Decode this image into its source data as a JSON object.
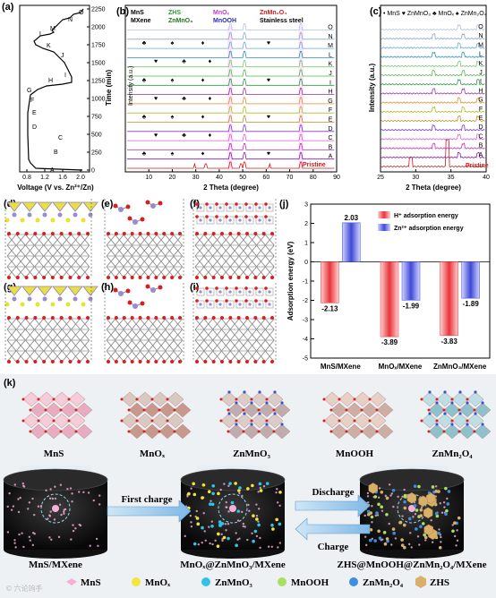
{
  "panels": {
    "a": {
      "label": "(a)",
      "xlabel": "Voltage (V vs. Zn²⁺/Zn)",
      "ylabel": "Time (min)",
      "xticks": [
        "0.8",
        "1.2",
        "1.6",
        "2.0"
      ],
      "yticks": [
        "0",
        "250",
        "500",
        "750",
        "1000",
        "1250",
        "1500",
        "1750",
        "2000",
        "2250"
      ],
      "letters": [
        "A",
        "B",
        "C",
        "D",
        "E",
        "F",
        "G",
        "H",
        "I",
        "J",
        "K",
        "L",
        "M",
        "N",
        "O"
      ]
    },
    "b": {
      "label": "(b)",
      "xlabel": "2 Theta (degree)",
      "ylabel": "Intensity (a.u.)",
      "xticks": [
        "10",
        "20",
        "30",
        "40",
        "50",
        "60",
        "70",
        "80",
        "90"
      ],
      "pristine": "Pristine",
      "legend": [
        "MnS",
        "MXene",
        "ZHS",
        "ZnMnO₃",
        "MnOₓ",
        "MnOOH",
        "ZnMn₂O₄",
        "Stainless steel"
      ],
      "letters": [
        "A",
        "B",
        "C",
        "D",
        "E",
        "F",
        "G",
        "H",
        "I",
        "J",
        "K",
        "L",
        "M",
        "N",
        "O"
      ]
    },
    "c": {
      "label": "(c)",
      "xlabel": "2 Theta (degree)",
      "ylabel": "Intensity (a.u.)",
      "xticks": [
        "25",
        "30",
        "35",
        "40"
      ],
      "pristine": "Pristine",
      "legend": "• MnS ♥ ZnMnO₃ ♣ MnOₓ ♠ ZnMn₂O₄"
    },
    "d": {
      "label": "(d)"
    },
    "e": {
      "label": "(e)"
    },
    "f": {
      "label": "(f)"
    },
    "g": {
      "label": "(g)"
    },
    "h": {
      "label": "(h)"
    },
    "i": {
      "label": "(i)"
    },
    "j": {
      "label": "(j)"
    },
    "k": {
      "label": "(k)"
    }
  },
  "chart_data": {
    "type": "bar",
    "categories": [
      "MnS/MXene",
      "MnOₓ/MXene",
      "ZnMnO₃/MXene"
    ],
    "series": [
      {
        "name": "H⁺ adsorption energy",
        "values": [
          -2.13,
          -3.89,
          -3.83
        ],
        "color": "#e8343a"
      },
      {
        "name": "Zn²⁺ adsorption energy",
        "values": [
          2.03,
          -1.99,
          -1.89
        ],
        "color": "#3f49d6"
      }
    ],
    "data_labels": [
      "-2.13",
      "2.03",
      "-3.89",
      "-1.99",
      "-3.83",
      "-1.89"
    ],
    "ylabel": "Adsorption energy (eV)",
    "ylim": [
      -5,
      3
    ],
    "legend_position": "top-right"
  },
  "k": {
    "structures": [
      "MnS",
      "MnOₓ",
      "ZnMnO₃",
      "MnOOH",
      "ZnMn₂O₄"
    ],
    "cylinders": [
      "MnS/MXene",
      "MnOₓ@ZnMnO₃/MXene",
      "ZHS@MnOOH@ZnMn₂O₄/MXene"
    ],
    "arrows": {
      "first_charge": "First charge",
      "discharge": "Discharge",
      "charge": "Charge"
    },
    "legend": [
      {
        "label": "MnS",
        "color": "#f4b0d8"
      },
      {
        "label": "MnOₓ",
        "color": "#f5e43a"
      },
      {
        "label": "ZnMnO₃",
        "color": "#32c1e8"
      },
      {
        "label": "MnOOH",
        "color": "#a8e060"
      },
      {
        "label": "ZnMn₂O₄",
        "color": "#3b8ee0"
      },
      {
        "label": "ZHS",
        "color": "#d9b06a"
      }
    ],
    "watermark": "© 六论竘手"
  }
}
